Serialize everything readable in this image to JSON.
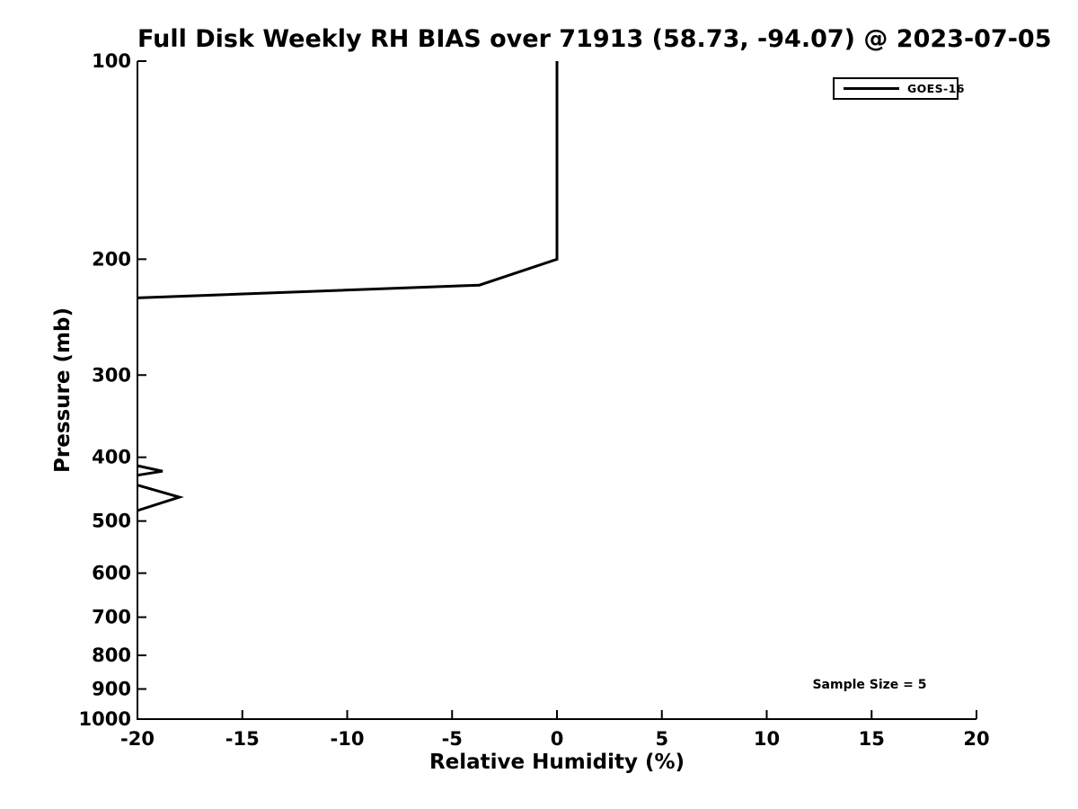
{
  "chart_data": {
    "type": "line",
    "title": "Full Disk Weekly RH BIAS over 71913 (58.73, -94.07) @ 2023-07-05",
    "xlabel": "Relative Humidity (%)",
    "ylabel": "Pressure (mb)",
    "xlim": [
      -20,
      20
    ],
    "ylim": [
      100,
      1000
    ],
    "yscale": "log",
    "y_inverted": true,
    "grid": false,
    "xticks": [
      -20,
      -15,
      -10,
      -5,
      0,
      5,
      10,
      15,
      20
    ],
    "yticks": [
      100,
      200,
      300,
      400,
      500,
      600,
      700,
      800,
      900,
      1000
    ],
    "legend": {
      "position": "top-right",
      "entries": [
        {
          "label": "GOES-16",
          "color": "#000000",
          "line_width": 3
        }
      ]
    },
    "annotation": "Sample Size = 5",
    "series": [
      {
        "name": "GOES-16",
        "color": "#000000",
        "line_width": 3,
        "note": "RH bias (%) vs pressure (mb); values beyond -20% run off the left axis, so the trace is clipped into visible segments",
        "segments": [
          [
            [
              0,
              100
            ],
            [
              0,
              200
            ],
            [
              -3.7,
              219
            ],
            [
              -20,
              229
            ]
          ],
          [
            [
              -20,
              412
            ],
            [
              -18.8,
              420
            ],
            [
              -20,
              426
            ]
          ],
          [
            [
              -20,
              441
            ],
            [
              -18.0,
              460
            ],
            [
              -20,
              482
            ]
          ]
        ]
      }
    ]
  },
  "colors": {
    "background": "#ffffff",
    "axis": "#000000",
    "text": "#000000",
    "series": "#000000"
  }
}
